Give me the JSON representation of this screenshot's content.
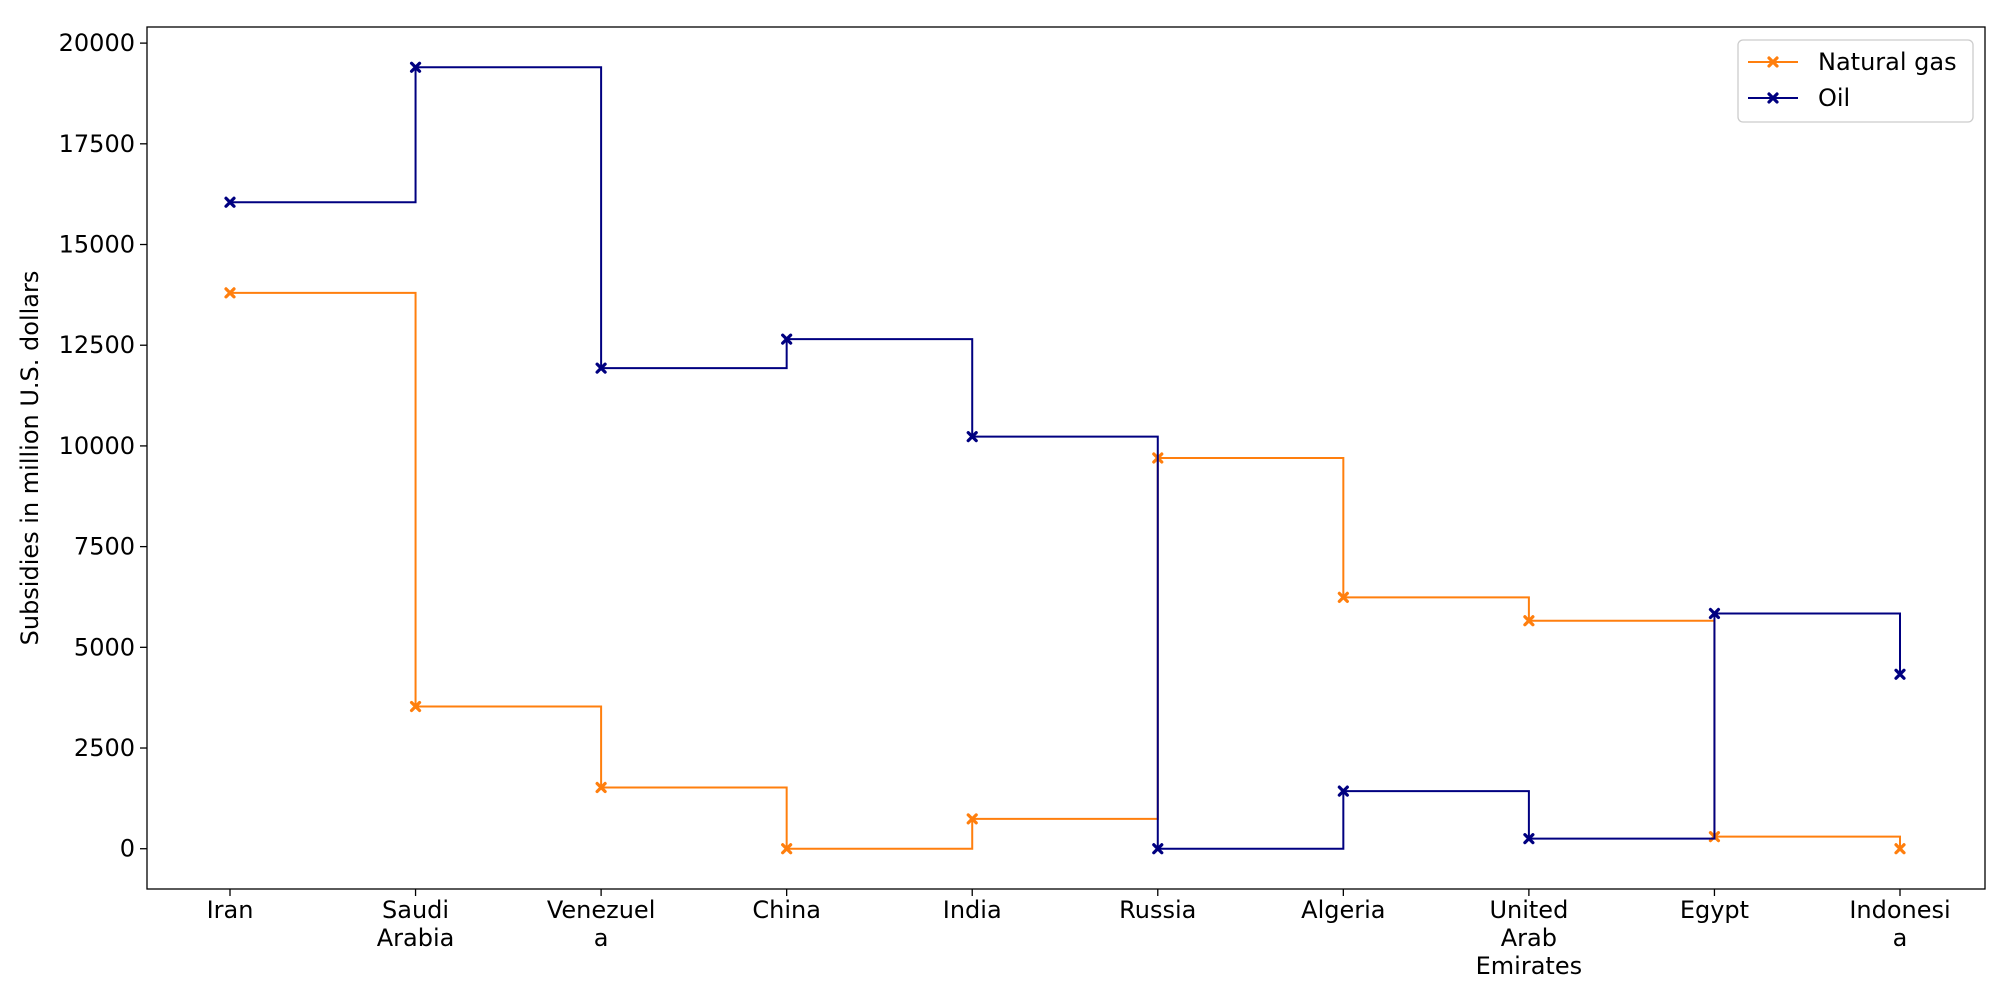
{
  "chart_data": {
    "type": "line",
    "step": "post",
    "title": "",
    "xlabel": "",
    "ylabel": "Subsidies in million U.S. dollars",
    "categories": [
      [
        "Iran"
      ],
      [
        "Saudi",
        "Arabia"
      ],
      [
        "Venezuel",
        "a"
      ],
      [
        "China"
      ],
      [
        "India"
      ],
      [
        "Russia"
      ],
      [
        "Algeria"
      ],
      [
        "United",
        "Arab",
        "Emirates"
      ],
      [
        "Egypt"
      ],
      [
        "Indonesi",
        "a"
      ]
    ],
    "series": [
      {
        "name": "Natural gas",
        "color": "#ff7f0e",
        "values": [
          13800,
          3530,
          1520,
          0,
          740,
          9700,
          6240,
          5660,
          300,
          0
        ]
      },
      {
        "name": "Oil",
        "color": "#000080",
        "values": [
          16050,
          19400,
          11930,
          12650,
          10230,
          0,
          1430,
          250,
          5840,
          4330
        ]
      }
    ],
    "ylim": [
      -1000,
      20400
    ],
    "yticks": [
      0,
      2500,
      5000,
      7500,
      10000,
      12500,
      15000,
      17500,
      20000
    ],
    "grid": false,
    "legend_position": "top-right",
    "marker": "x"
  }
}
